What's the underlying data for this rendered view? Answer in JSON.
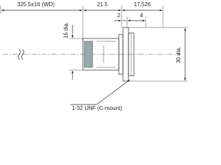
{
  "dimensions": {
    "working_distance": "325.5±16 (WD)",
    "body_length": "21.5",
    "flange_length": "17.526",
    "flange_thickness": "2",
    "mount_step": "4",
    "body_diameter": "16 dia.",
    "flange_diameter": "30 dia."
  },
  "callout": "1-32 UNF (C-mount)"
}
